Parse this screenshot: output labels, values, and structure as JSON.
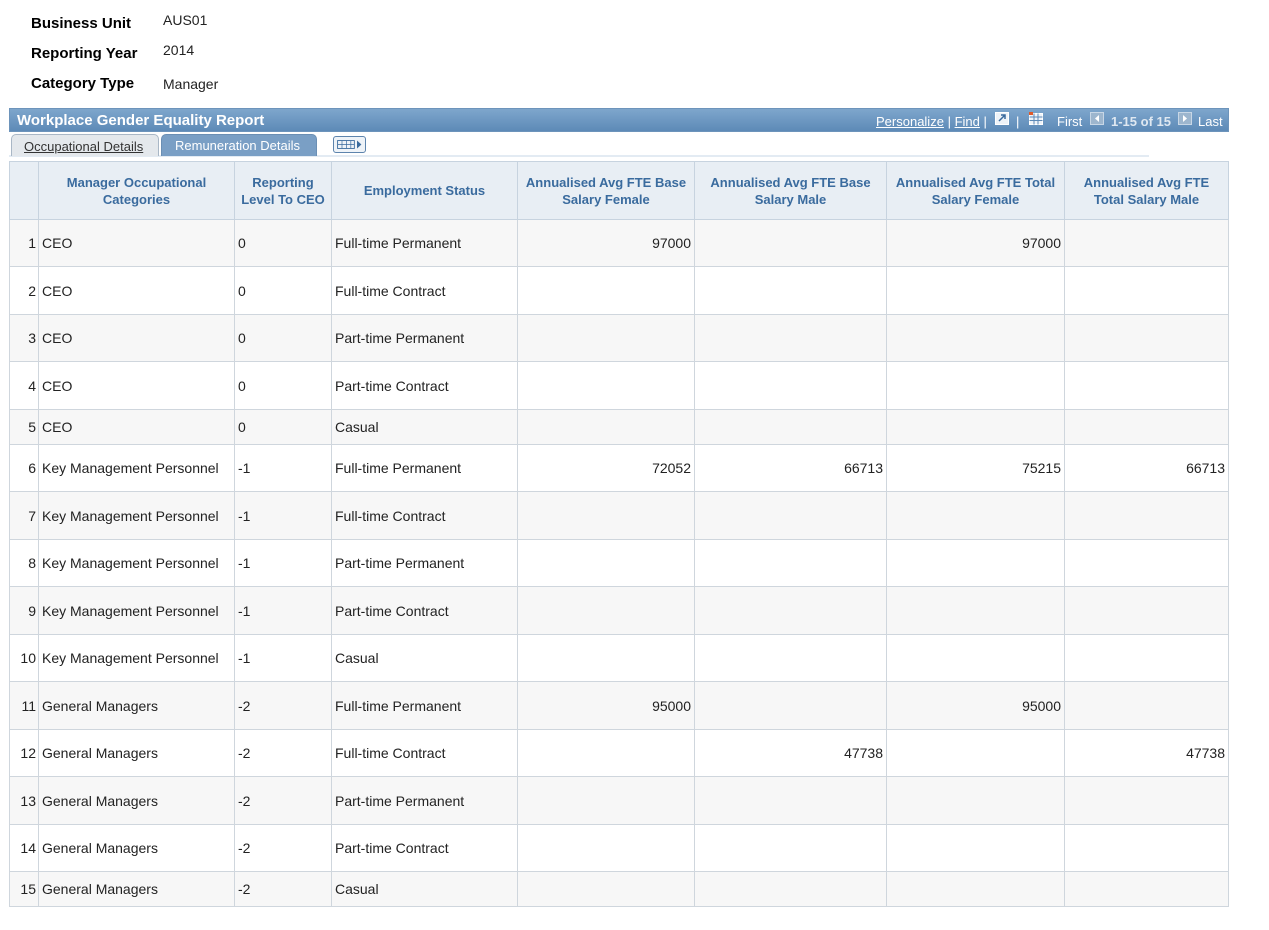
{
  "header_fields": {
    "business_unit_label": "Business Unit",
    "business_unit_value": "AUS01",
    "reporting_year_label": "Reporting Year",
    "reporting_year_value": "2014",
    "category_type_label": "Category Type",
    "category_type_value": "Manager"
  },
  "grid": {
    "title": "Workplace Gender Equality Report",
    "personalize": "Personalize",
    "find": "Find",
    "first": "First",
    "range": "1-15 of 15",
    "last": "Last",
    "tabs": {
      "occupational": "Occupational Details",
      "remuneration": "Remuneration Details"
    },
    "columns": [
      "",
      "Manager Occupational Categories",
      "Reporting Level To CEO",
      "Employment Status",
      "Annualised Avg FTE Base Salary Female",
      "Annualised Avg FTE Base Salary Male",
      "Annualised Avg FTE Total Salary Female",
      "Annualised Avg FTE Total Salary Male"
    ],
    "rows": [
      [
        "1",
        "CEO",
        "0",
        "Full-time Permanent",
        "97000",
        "",
        "97000",
        ""
      ],
      [
        "2",
        "CEO",
        "0",
        "Full-time Contract",
        "",
        "",
        "",
        ""
      ],
      [
        "3",
        "CEO",
        "0",
        "Part-time Permanent",
        "",
        "",
        "",
        ""
      ],
      [
        "4",
        "CEO",
        "0",
        "Part-time Contract",
        "",
        "",
        "",
        ""
      ],
      [
        "5",
        "CEO",
        "0",
        "Casual",
        "",
        "",
        "",
        ""
      ],
      [
        "6",
        "Key Management Personnel",
        "-1",
        "Full-time Permanent",
        "72052",
        "66713",
        "75215",
        "66713"
      ],
      [
        "7",
        "Key Management Personnel",
        "-1",
        "Full-time Contract",
        "",
        "",
        "",
        ""
      ],
      [
        "8",
        "Key Management Personnel",
        "-1",
        "Part-time Permanent",
        "",
        "",
        "",
        ""
      ],
      [
        "9",
        "Key Management Personnel",
        "-1",
        "Part-time Contract",
        "",
        "",
        "",
        ""
      ],
      [
        "10",
        "Key Management Personnel",
        "-1",
        "Casual",
        "",
        "",
        "",
        ""
      ],
      [
        "11",
        "General Managers",
        "-2",
        "Full-time Permanent",
        "95000",
        "",
        "95000",
        ""
      ],
      [
        "12",
        "General Managers",
        "-2",
        "Full-time Contract",
        "",
        "47738",
        "",
        "47738"
      ],
      [
        "13",
        "General Managers",
        "-2",
        "Part-time Permanent",
        "",
        "",
        "",
        ""
      ],
      [
        "14",
        "General Managers",
        "-2",
        "Part-time Contract",
        "",
        "",
        "",
        ""
      ],
      [
        "15",
        "General Managers",
        "-2",
        "Casual",
        "",
        "",
        "",
        ""
      ]
    ]
  },
  "icons": {
    "zoom": "zoom-grid-icon",
    "download": "download-excel-icon",
    "first": "first-arrow-icon",
    "next": "next-arrow-icon",
    "expand": "show-all-columns-icon"
  },
  "colors": {
    "title_bar": "#6d94bb",
    "header_text": "#3a6b9e",
    "active_tab": "#7a9fc5"
  }
}
